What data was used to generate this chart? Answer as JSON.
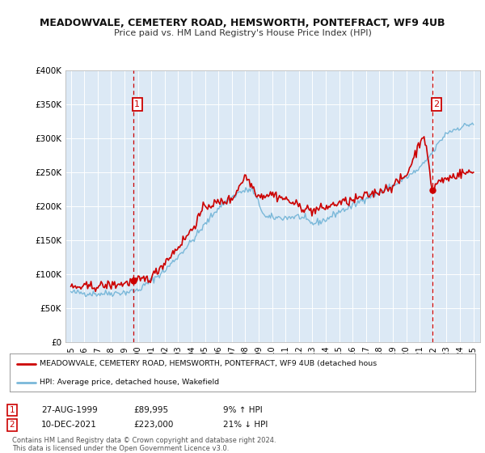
{
  "title": "MEADOWVALE, CEMETERY ROAD, HEMSWORTH, PONTEFRACT, WF9 4UB",
  "subtitle": "Price paid vs. HM Land Registry's House Price Index (HPI)",
  "background_color": "#ffffff",
  "plot_bg_color": "#dce9f5",
  "grid_color": "#ffffff",
  "ylim": [
    0,
    400000
  ],
  "yticks": [
    0,
    50000,
    100000,
    150000,
    200000,
    250000,
    300000,
    350000,
    400000
  ],
  "ytick_labels": [
    "£0",
    "£50K",
    "£100K",
    "£150K",
    "£200K",
    "£250K",
    "£300K",
    "£350K",
    "£400K"
  ],
  "sale1_date": 1999.65,
  "sale1_price": 89995,
  "sale1_label": "1",
  "sale1_date_str": "27-AUG-1999",
  "sale1_price_str": "£89,995",
  "sale1_hpi_str": "9% ↑ HPI",
  "sale2_date": 2021.94,
  "sale2_price": 223000,
  "sale2_label": "2",
  "sale2_date_str": "10-DEC-2021",
  "sale2_price_str": "£223,000",
  "sale2_hpi_str": "21% ↓ HPI",
  "legend_line1": "MEADOWVALE, CEMETERY ROAD, HEMSWORTH, PONTEFRACT, WF9 4UB (detached hous",
  "legend_line2": "HPI: Average price, detached house, Wakefield",
  "footer_line1": "Contains HM Land Registry data © Crown copyright and database right 2024.",
  "footer_line2": "This data is licensed under the Open Government Licence v3.0.",
  "hpi_color": "#7ab8d9",
  "price_color": "#cc0000",
  "vline_color": "#cc0000",
  "marker_color": "#cc0000",
  "annotation_box_color": "#cc0000",
  "title_fontsize": 9.0,
  "subtitle_fontsize": 8.0
}
